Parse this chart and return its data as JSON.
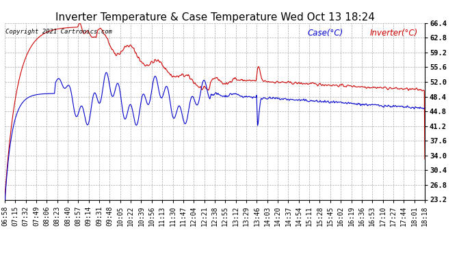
{
  "title": "Inverter Temperature & Case Temperature Wed Oct 13 18:24",
  "copyright": "Copyright 2021 Cartronics.com",
  "legend_case": "Case(°C)",
  "legend_inverter": "Inverter(°C)",
  "ylim": [
    23.2,
    66.4
  ],
  "yticks": [
    23.2,
    26.8,
    30.4,
    34.0,
    37.6,
    41.2,
    44.8,
    48.4,
    52.0,
    55.6,
    59.2,
    62.8,
    66.4
  ],
  "xtick_labels": [
    "06:58",
    "07:15",
    "07:32",
    "07:49",
    "08:06",
    "08:23",
    "08:40",
    "08:57",
    "09:14",
    "09:31",
    "09:48",
    "10:05",
    "10:22",
    "10:39",
    "10:56",
    "11:13",
    "11:30",
    "11:47",
    "12:04",
    "12:21",
    "12:38",
    "12:55",
    "13:12",
    "13:29",
    "13:46",
    "14:03",
    "14:20",
    "14:37",
    "14:54",
    "15:11",
    "15:28",
    "15:45",
    "16:02",
    "16:19",
    "16:36",
    "16:53",
    "17:10",
    "17:27",
    "17:44",
    "18:01",
    "18:18"
  ],
  "bg_color": "#ffffff",
  "grid_color": "#aaaaaa",
  "case_color": "#0000cc",
  "inverter_color": "#cc0000",
  "title_fontsize": 11,
  "tick_fontsize": 7,
  "legend_fontsize": 8.5
}
